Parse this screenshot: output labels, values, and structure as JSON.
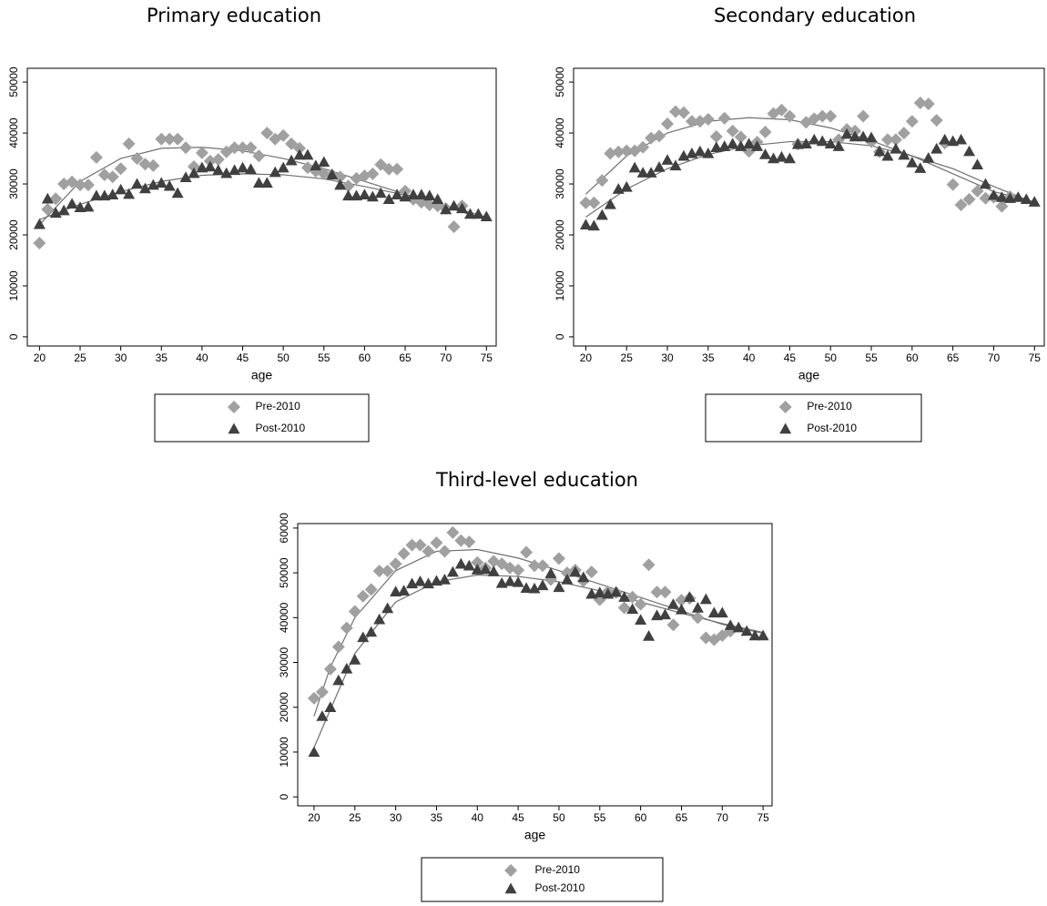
{
  "chart_data": [
    {
      "type": "scatter",
      "title": "Primary education",
      "x_label": "age",
      "xlim": [
        18.5,
        76.2
      ],
      "ylim": [
        -1800,
        52700
      ],
      "xticks": [
        20,
        25,
        30,
        35,
        40,
        45,
        50,
        55,
        60,
        65,
        70,
        75
      ],
      "yticks": [
        0,
        10000,
        20000,
        30000,
        40000,
        50000
      ],
      "series": [
        {
          "name": "Pre-2010",
          "marker": "diamond",
          "color": "#a0a0a0",
          "x": [
            20,
            21,
            22,
            23,
            24,
            25,
            26,
            27,
            28,
            29,
            30,
            31,
            32,
            33,
            34,
            35,
            36,
            37,
            38,
            39,
            40,
            41,
            42,
            43,
            44,
            45,
            46,
            47,
            48,
            49,
            50,
            51,
            52,
            53,
            54,
            55,
            56,
            57,
            58,
            59,
            60,
            61,
            62,
            63,
            64,
            65,
            66,
            67,
            68,
            69,
            70,
            71,
            72
          ],
          "values": [
            18400,
            25000,
            27100,
            30000,
            30400,
            29800,
            29800,
            35200,
            31800,
            31400,
            33000,
            37900,
            35000,
            33900,
            33600,
            38800,
            38800,
            38800,
            37100,
            33400,
            36100,
            34500,
            34800,
            36300,
            37100,
            37100,
            37100,
            35500,
            40000,
            38800,
            39500,
            37900,
            37000,
            33200,
            32500,
            32000,
            31800,
            31400,
            29600,
            31100,
            31600,
            32000,
            33800,
            32900,
            32900,
            28600,
            27000,
            26400,
            25900,
            25700,
            25200,
            21600,
            25700
          ]
        },
        {
          "name": "Post-2010",
          "marker": "triangle",
          "color": "#404040",
          "x": [
            20,
            21,
            22,
            23,
            24,
            25,
            26,
            27,
            28,
            29,
            30,
            31,
            32,
            33,
            34,
            35,
            36,
            37,
            38,
            39,
            40,
            41,
            42,
            43,
            44,
            45,
            46,
            47,
            48,
            49,
            50,
            51,
            52,
            53,
            54,
            55,
            56,
            57,
            58,
            59,
            60,
            61,
            62,
            63,
            64,
            65,
            66,
            67,
            68,
            69,
            70,
            71,
            72,
            73,
            74,
            75
          ],
          "values": [
            22100,
            27100,
            24300,
            24800,
            26100,
            25400,
            25500,
            27700,
            27700,
            27900,
            28900,
            28000,
            30000,
            29100,
            29800,
            30200,
            29600,
            28200,
            31300,
            32100,
            33200,
            33400,
            32700,
            32100,
            32700,
            33200,
            32900,
            30200,
            30200,
            32300,
            33200,
            34600,
            35700,
            35700,
            33600,
            34300,
            31800,
            29800,
            27700,
            27700,
            27900,
            27500,
            28200,
            27000,
            27900,
            27500,
            27900,
            27900,
            27700,
            27000,
            25000,
            25700,
            25200,
            24100,
            24100,
            23600
          ]
        },
        {
          "type": "line",
          "color": "#707070",
          "x": [
            20,
            25,
            30,
            35,
            40,
            45,
            50,
            55,
            60,
            65,
            70,
            75
          ],
          "values": [
            22000,
            30500,
            35000,
            37000,
            37200,
            36500,
            35000,
            33000,
            30500,
            28000,
            25500,
            23000
          ]
        },
        {
          "type": "line",
          "color": "#707070",
          "x": [
            20,
            25,
            30,
            35,
            40,
            45,
            50,
            55,
            60,
            65,
            70,
            75
          ],
          "values": [
            23000,
            26000,
            28500,
            30500,
            31700,
            32000,
            31800,
            31000,
            29500,
            27800,
            25800,
            23500
          ]
        }
      ]
    },
    {
      "type": "scatter",
      "title": "Secondary education",
      "x_label": "age",
      "xlim": [
        18.5,
        76.2
      ],
      "ylim": [
        -1800,
        52700
      ],
      "xticks": [
        20,
        25,
        30,
        35,
        40,
        45,
        50,
        55,
        60,
        65,
        70,
        75
      ],
      "yticks": [
        0,
        10000,
        20000,
        30000,
        40000,
        50000
      ],
      "series": [
        {
          "name": "Pre-2010",
          "marker": "diamond",
          "color": "#a0a0a0",
          "x": [
            20,
            21,
            22,
            23,
            24,
            25,
            26,
            27,
            28,
            29,
            30,
            31,
            32,
            33,
            34,
            35,
            36,
            37,
            38,
            39,
            40,
            41,
            42,
            43,
            44,
            45,
            46,
            47,
            48,
            49,
            50,
            51,
            52,
            53,
            54,
            55,
            56,
            57,
            58,
            59,
            60,
            61,
            62,
            63,
            64,
            65,
            66,
            67,
            68,
            69,
            70,
            71,
            72
          ],
          "values": [
            26300,
            26300,
            30700,
            36000,
            36300,
            36500,
            36500,
            37200,
            39000,
            39400,
            41800,
            44200,
            44000,
            42300,
            42300,
            42700,
            39300,
            42900,
            40400,
            39200,
            36400,
            38200,
            40200,
            43800,
            44500,
            43300,
            37800,
            42100,
            42800,
            43300,
            43300,
            38700,
            40700,
            40400,
            43300,
            38300,
            36300,
            38700,
            38700,
            40000,
            42300,
            45900,
            45700,
            42500,
            38000,
            29900,
            25900,
            27000,
            28600,
            27200,
            27400,
            25600,
            27500
          ]
        },
        {
          "name": "Post-2010",
          "marker": "triangle",
          "color": "#404040",
          "x": [
            20,
            21,
            22,
            23,
            24,
            25,
            26,
            27,
            28,
            29,
            30,
            31,
            32,
            33,
            34,
            35,
            36,
            37,
            38,
            39,
            40,
            41,
            42,
            43,
            44,
            45,
            46,
            47,
            48,
            49,
            50,
            51,
            52,
            53,
            54,
            55,
            56,
            57,
            58,
            59,
            60,
            61,
            62,
            63,
            64,
            65,
            66,
            67,
            68,
            69,
            70,
            71,
            72,
            73,
            74,
            75
          ],
          "values": [
            22000,
            21800,
            23900,
            26000,
            29000,
            29400,
            33200,
            32200,
            32200,
            33300,
            34700,
            33600,
            35500,
            36000,
            36400,
            36000,
            37200,
            37400,
            37900,
            37400,
            37900,
            37400,
            35800,
            35000,
            35300,
            35000,
            37800,
            37900,
            38700,
            38400,
            37900,
            37400,
            39800,
            39300,
            39300,
            39100,
            36400,
            35500,
            36900,
            35700,
            34200,
            33100,
            35100,
            36900,
            38700,
            38400,
            38700,
            36400,
            33800,
            30000,
            27800,
            27400,
            27200,
            27400,
            27000,
            26500
          ]
        },
        {
          "type": "line",
          "color": "#707070",
          "x": [
            20,
            25,
            30,
            35,
            40,
            45,
            50,
            55,
            60,
            65,
            70,
            75
          ],
          "values": [
            28000,
            35500,
            40000,
            42300,
            43000,
            42600,
            41000,
            38500,
            35500,
            32000,
            28500,
            26500
          ]
        },
        {
          "type": "line",
          "color": "#707070",
          "x": [
            20,
            25,
            30,
            35,
            40,
            45,
            50,
            55,
            60,
            65,
            70,
            75
          ],
          "values": [
            23500,
            29000,
            33000,
            35800,
            37500,
            38300,
            38300,
            37500,
            35500,
            33000,
            29500,
            26300
          ]
        }
      ]
    },
    {
      "type": "scatter",
      "title": "Third-level education",
      "x_label": "age",
      "xlim": [
        18,
        76.1
      ],
      "ylim": [
        -2000,
        61000
      ],
      "xticks": [
        20,
        25,
        30,
        35,
        40,
        45,
        50,
        55,
        60,
        65,
        70,
        75
      ],
      "yticks": [
        0,
        10000,
        20000,
        30000,
        40000,
        50000,
        60000
      ],
      "series": [
        {
          "name": "Pre-2010",
          "marker": "diamond",
          "color": "#a0a0a0",
          "x": [
            20,
            21,
            22,
            23,
            24,
            25,
            26,
            27,
            28,
            29,
            30,
            31,
            32,
            33,
            34,
            35,
            36,
            37,
            38,
            39,
            40,
            41,
            42,
            43,
            44,
            45,
            46,
            47,
            48,
            49,
            50,
            51,
            52,
            53,
            54,
            55,
            56,
            57,
            58,
            59,
            60,
            61,
            62,
            63,
            64,
            65,
            66,
            67,
            68,
            69,
            70,
            71
          ],
          "values": [
            22000,
            23400,
            28500,
            33500,
            37700,
            41400,
            44800,
            46300,
            50400,
            50400,
            52000,
            54300,
            56200,
            56200,
            54800,
            56700,
            54800,
            59000,
            57200,
            56900,
            52300,
            51100,
            52600,
            52000,
            51100,
            50600,
            54600,
            51600,
            51600,
            48500,
            53200,
            50000,
            50600,
            48200,
            50200,
            44000,
            45800,
            45600,
            42200,
            44600,
            43000,
            51800,
            45700,
            45700,
            38400,
            43900,
            44300,
            40000,
            35500,
            35100,
            36000,
            37000
          ]
        },
        {
          "name": "Post-2010",
          "marker": "triangle",
          "color": "#404040",
          "x": [
            20,
            21,
            22,
            23,
            24,
            25,
            26,
            27,
            28,
            29,
            30,
            31,
            32,
            33,
            34,
            35,
            36,
            37,
            38,
            39,
            40,
            41,
            42,
            43,
            44,
            45,
            46,
            47,
            48,
            49,
            50,
            51,
            52,
            53,
            54,
            55,
            56,
            57,
            58,
            59,
            60,
            61,
            62,
            63,
            64,
            65,
            66,
            67,
            68,
            69,
            70,
            71,
            72,
            73,
            74,
            75
          ],
          "values": [
            10000,
            18000,
            20000,
            26000,
            28600,
            30600,
            35600,
            36800,
            39600,
            42100,
            45800,
            46000,
            47600,
            48100,
            47600,
            48200,
            48500,
            50200,
            52000,
            51600,
            50700,
            50800,
            50300,
            47700,
            48100,
            47900,
            46600,
            46500,
            47200,
            49900,
            46800,
            48500,
            50200,
            49000,
            45300,
            45600,
            45300,
            45700,
            44600,
            41900,
            39500,
            35900,
            40500,
            40700,
            43000,
            41800,
            44600,
            42200,
            44100,
            41100,
            41100,
            38300,
            37800,
            37000,
            36000,
            36000
          ]
        },
        {
          "type": "line",
          "color": "#707070",
          "x": [
            20,
            22,
            25,
            30,
            35,
            40,
            45,
            50,
            55,
            60,
            65,
            70,
            75
          ],
          "values": [
            18000,
            29000,
            40000,
            50500,
            54800,
            55200,
            53300,
            50500,
            47500,
            44500,
            41500,
            38500,
            36500
          ]
        },
        {
          "type": "line",
          "color": "#707070",
          "x": [
            20,
            22,
            25,
            30,
            35,
            40,
            45,
            50,
            55,
            60,
            65,
            70,
            75
          ],
          "values": [
            11000,
            19500,
            32000,
            43500,
            48000,
            49500,
            49200,
            48000,
            46000,
            43500,
            41000,
            38700,
            36700
          ]
        }
      ]
    }
  ]
}
